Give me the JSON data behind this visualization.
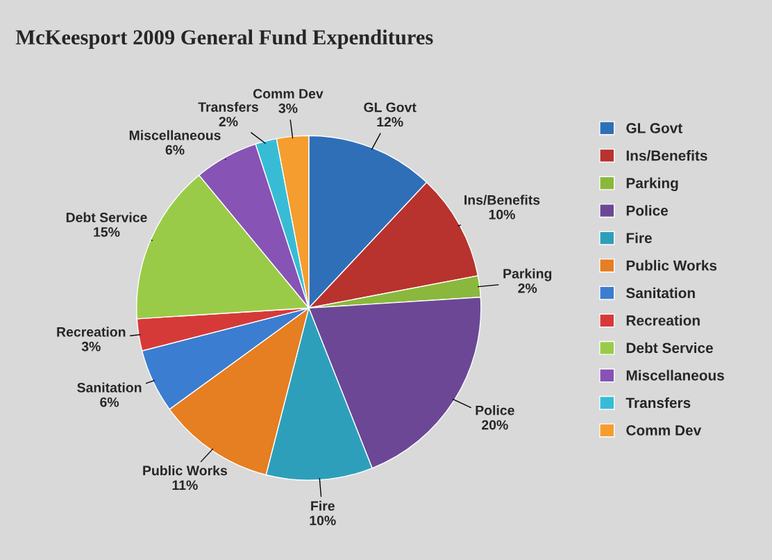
{
  "chart_data": {
    "type": "pie",
    "title": "McKeesport 2009 General Fund Expenditures",
    "categories": [
      "GL Govt",
      "Ins/Benefits",
      "Parking",
      "Police",
      "Fire",
      "Public Works",
      "Sanitation",
      "Recreation",
      "Debt Service",
      "Miscellaneous",
      "Transfers",
      "Comm Dev"
    ],
    "values": [
      12,
      10,
      2,
      20,
      10,
      11,
      6,
      3,
      15,
      6,
      2,
      3
    ],
    "value_labels": [
      "12%",
      "10%",
      "2%",
      "20%",
      "10%",
      "11%",
      "6%",
      "3%",
      "15%",
      "6%",
      "2%",
      "3%"
    ],
    "colors": [
      "#2f6fb8",
      "#b8322e",
      "#8ab83c",
      "#6c4796",
      "#2e9fba",
      "#e67e22",
      "#3b7dd0",
      "#d63a38",
      "#9acb48",
      "#8753b4",
      "#38bcd6",
      "#f59d2e"
    ],
    "legend": "right"
  }
}
